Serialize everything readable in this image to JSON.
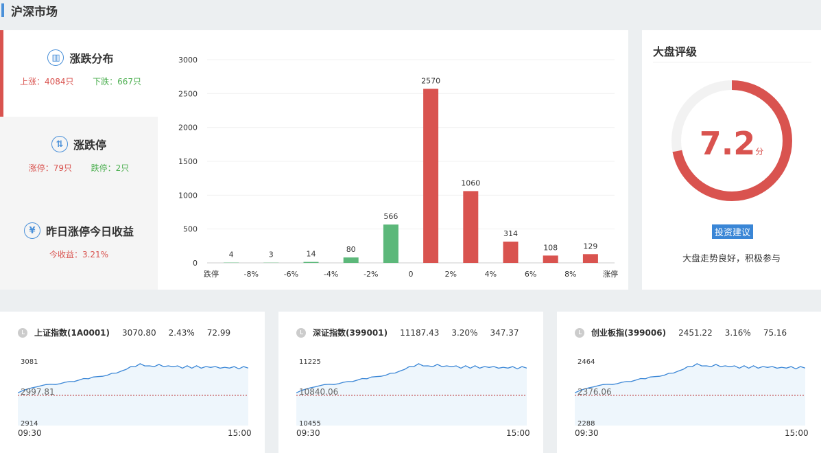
{
  "page": {
    "title": "沪深市场"
  },
  "tabs": {
    "dist": {
      "title": "涨跌分布",
      "icon": "bar-chart-icon",
      "up": "上涨：4084只",
      "down": "下跌：667只"
    },
    "limit": {
      "title": "涨跌停",
      "icon": "up-down-arrow-icon",
      "up": "涨停：79只",
      "down": "跌停：2只"
    },
    "yesterday": {
      "title": "昨日涨停今日收益",
      "icon": "yen-icon",
      "gain": "今收益：3.21%"
    }
  },
  "chart_data": {
    "type": "bar",
    "categories": [
      "跌停",
      "-8%",
      "-6%",
      "-4%",
      "-2%",
      "0",
      "2%",
      "4%",
      "6%",
      "8%",
      "涨停"
    ],
    "bars": [
      {
        "value": 4,
        "color": "#5cb87a"
      },
      {
        "value": 3,
        "color": "#5cb87a"
      },
      {
        "value": 14,
        "color": "#5cb87a"
      },
      {
        "value": 80,
        "color": "#5cb87a"
      },
      {
        "value": 566,
        "color": "#5cb87a"
      },
      {
        "value": 2570,
        "color": "#d9534f"
      },
      {
        "value": 1060,
        "color": "#d9534f"
      },
      {
        "value": 314,
        "color": "#d9534f"
      },
      {
        "value": 108,
        "color": "#d9534f"
      },
      {
        "value": 129,
        "color": "#d9534f"
      }
    ],
    "yticks": [
      0,
      500,
      1000,
      1500,
      2000,
      2500,
      3000
    ],
    "ylim": [
      0,
      3000
    ],
    "grid": true
  },
  "rating": {
    "title": "大盘评级",
    "score": "7.2",
    "unit": "分",
    "score_value": 7.2,
    "max": 10,
    "button": "投资建议",
    "advice": "大盘走势良好，积极参与"
  },
  "indices": [
    {
      "name": "上证指数(1A0001)",
      "price": "3070.80",
      "pct": "2.43%",
      "change": "72.99",
      "high": "3081",
      "base": "2997.81",
      "low": "2914",
      "start": "09:30",
      "end": "15:00"
    },
    {
      "name": "深证指数(399001)",
      "price": "11187.43",
      "pct": "3.20%",
      "change": "347.37",
      "high": "11225",
      "base": "10840.06",
      "low": "10455",
      "start": "09:30",
      "end": "15:00"
    },
    {
      "name": "创业板指(399006)",
      "price": "2451.22",
      "pct": "3.16%",
      "change": "75.16",
      "high": "2464",
      "base": "2376.06",
      "low": "2288",
      "start": "09:30",
      "end": "15:00"
    }
  ],
  "colors": {
    "up": "#d9534f",
    "down": "#4caf50",
    "accent": "#4a90d9",
    "line": "#3a86d6"
  }
}
